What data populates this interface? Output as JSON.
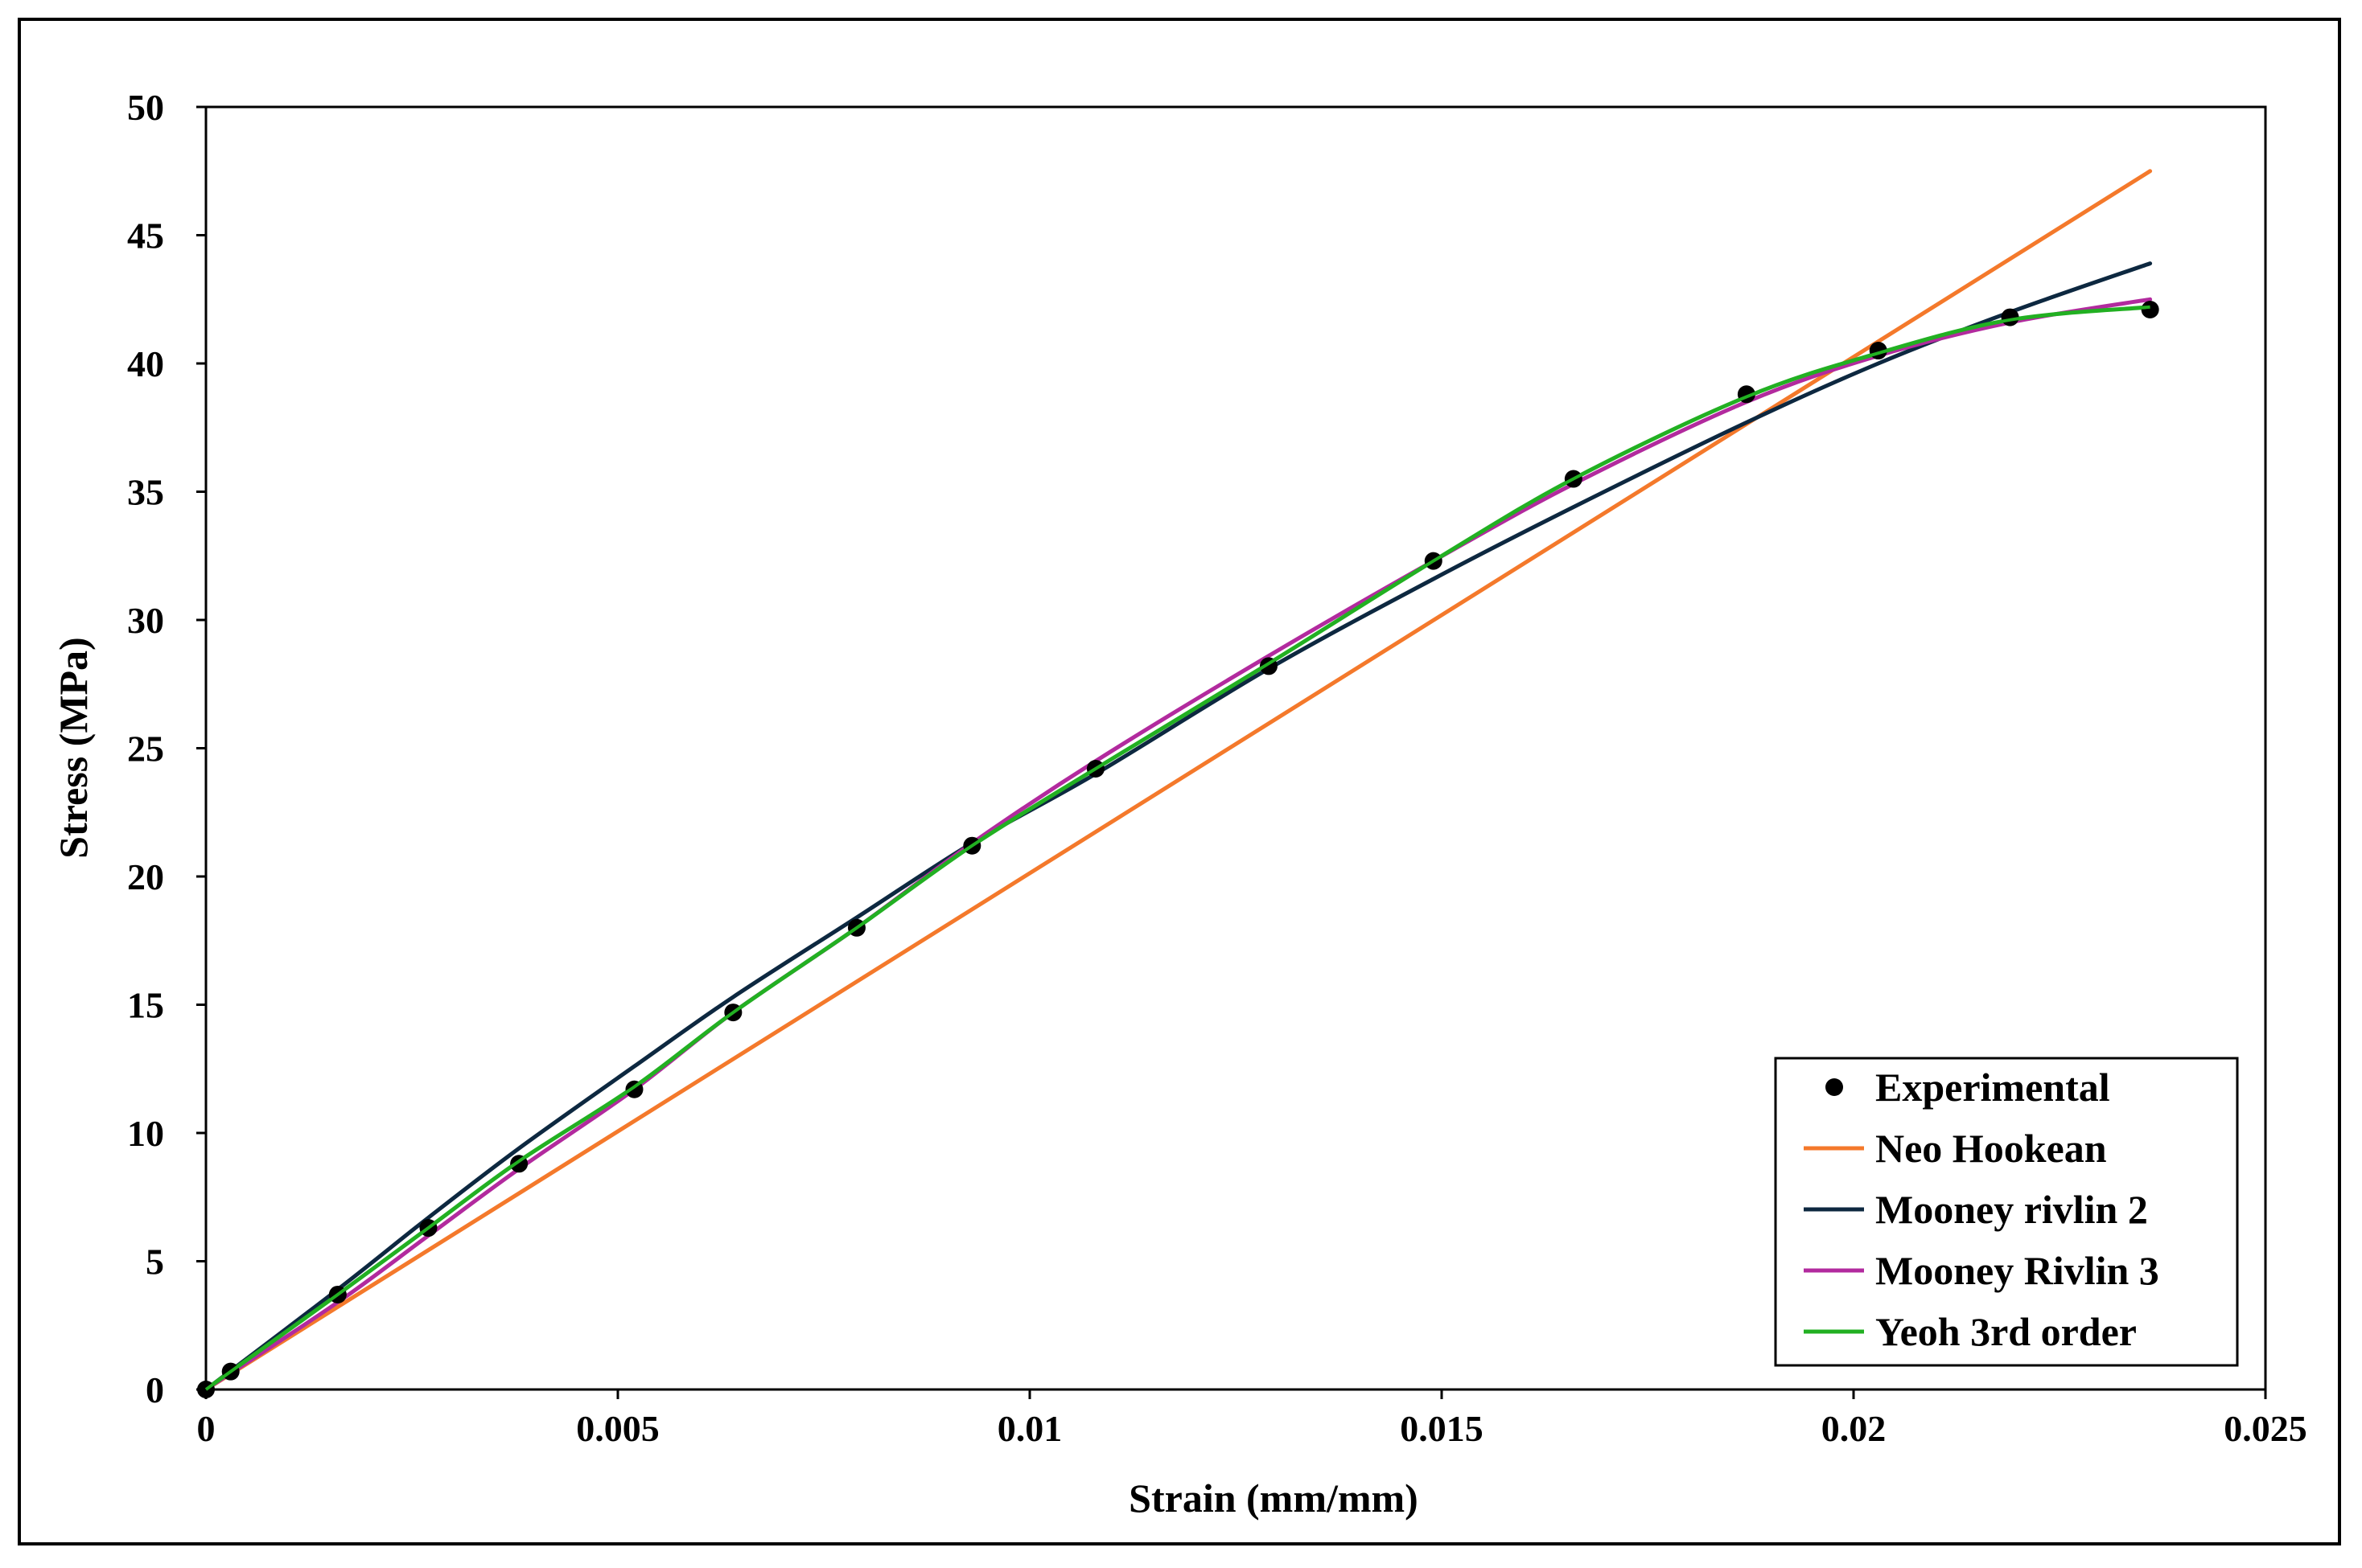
{
  "chart_data": {
    "type": "line",
    "title": "",
    "xlabel": "Strain (mm/mm)",
    "ylabel": "Stress (MPa)",
    "xlim": [
      0,
      0.025
    ],
    "ylim": [
      0,
      50
    ],
    "x_ticks": [
      "0",
      "0.005",
      "0.01",
      "0.015",
      "0.02",
      "0.025"
    ],
    "y_ticks": [
      "0",
      "5",
      "10",
      "15",
      "20",
      "25",
      "30",
      "35",
      "40",
      "45",
      "50"
    ],
    "grid": false,
    "legend_position": "bottom-right",
    "series": [
      {
        "name": "Experimental",
        "kind": "scatter",
        "color": "#000000",
        "x": [
          0,
          0.0003,
          0.0016,
          0.0027,
          0.0038,
          0.0052,
          0.0064,
          0.0079,
          0.0093,
          0.0108,
          0.0129,
          0.0149,
          0.0166,
          0.0187,
          0.0203,
          0.0219,
          0.0236
        ],
        "y": [
          0,
          0.7,
          3.7,
          6.3,
          8.8,
          11.7,
          14.7,
          18.0,
          21.2,
          24.2,
          28.2,
          32.3,
          35.5,
          38.8,
          40.5,
          41.8,
          42.1
        ]
      },
      {
        "name": "Neo Hookean",
        "kind": "line",
        "color": "#F4792B",
        "x": [
          0,
          0.0236
        ],
        "y": [
          0,
          47.5
        ]
      },
      {
        "name": "Mooney rivlin 2",
        "kind": "line",
        "color": "#0D2840",
        "x": [
          0,
          0.0016,
          0.0027,
          0.0038,
          0.0052,
          0.0064,
          0.0079,
          0.0093,
          0.0108,
          0.0129,
          0.0149,
          0.0166,
          0.0187,
          0.0203,
          0.0219,
          0.0236
        ],
        "y": [
          0,
          3.9,
          6.7,
          9.4,
          12.6,
          15.3,
          18.4,
          21.3,
          24.0,
          28.1,
          31.6,
          34.4,
          37.7,
          40.0,
          42.0,
          43.9
        ]
      },
      {
        "name": "Mooney Rivlin 3",
        "kind": "line",
        "color": "#B22A9E",
        "x": [
          0,
          0.0016,
          0.0027,
          0.0038,
          0.0052,
          0.0064,
          0.0079,
          0.0093,
          0.0108,
          0.0129,
          0.0149,
          0.0166,
          0.0187,
          0.0203,
          0.0219,
          0.0236
        ],
        "y": [
          0,
          3.4,
          6.0,
          8.6,
          11.7,
          14.7,
          18.0,
          21.3,
          24.5,
          28.6,
          32.3,
          35.3,
          38.5,
          40.3,
          41.6,
          42.5
        ]
      },
      {
        "name": "Yeoh 3rd order",
        "kind": "line",
        "color": "#22B022",
        "x": [
          0,
          0.0003,
          0.0016,
          0.0027,
          0.0038,
          0.0052,
          0.0064,
          0.0079,
          0.0093,
          0.0108,
          0.0129,
          0.0149,
          0.0166,
          0.0187,
          0.0203,
          0.0219,
          0.0236
        ],
        "y": [
          0,
          0.7,
          3.7,
          6.3,
          8.9,
          11.8,
          14.7,
          18.0,
          21.2,
          24.2,
          28.3,
          32.3,
          35.5,
          38.7,
          40.4,
          41.7,
          42.2
        ]
      }
    ]
  }
}
